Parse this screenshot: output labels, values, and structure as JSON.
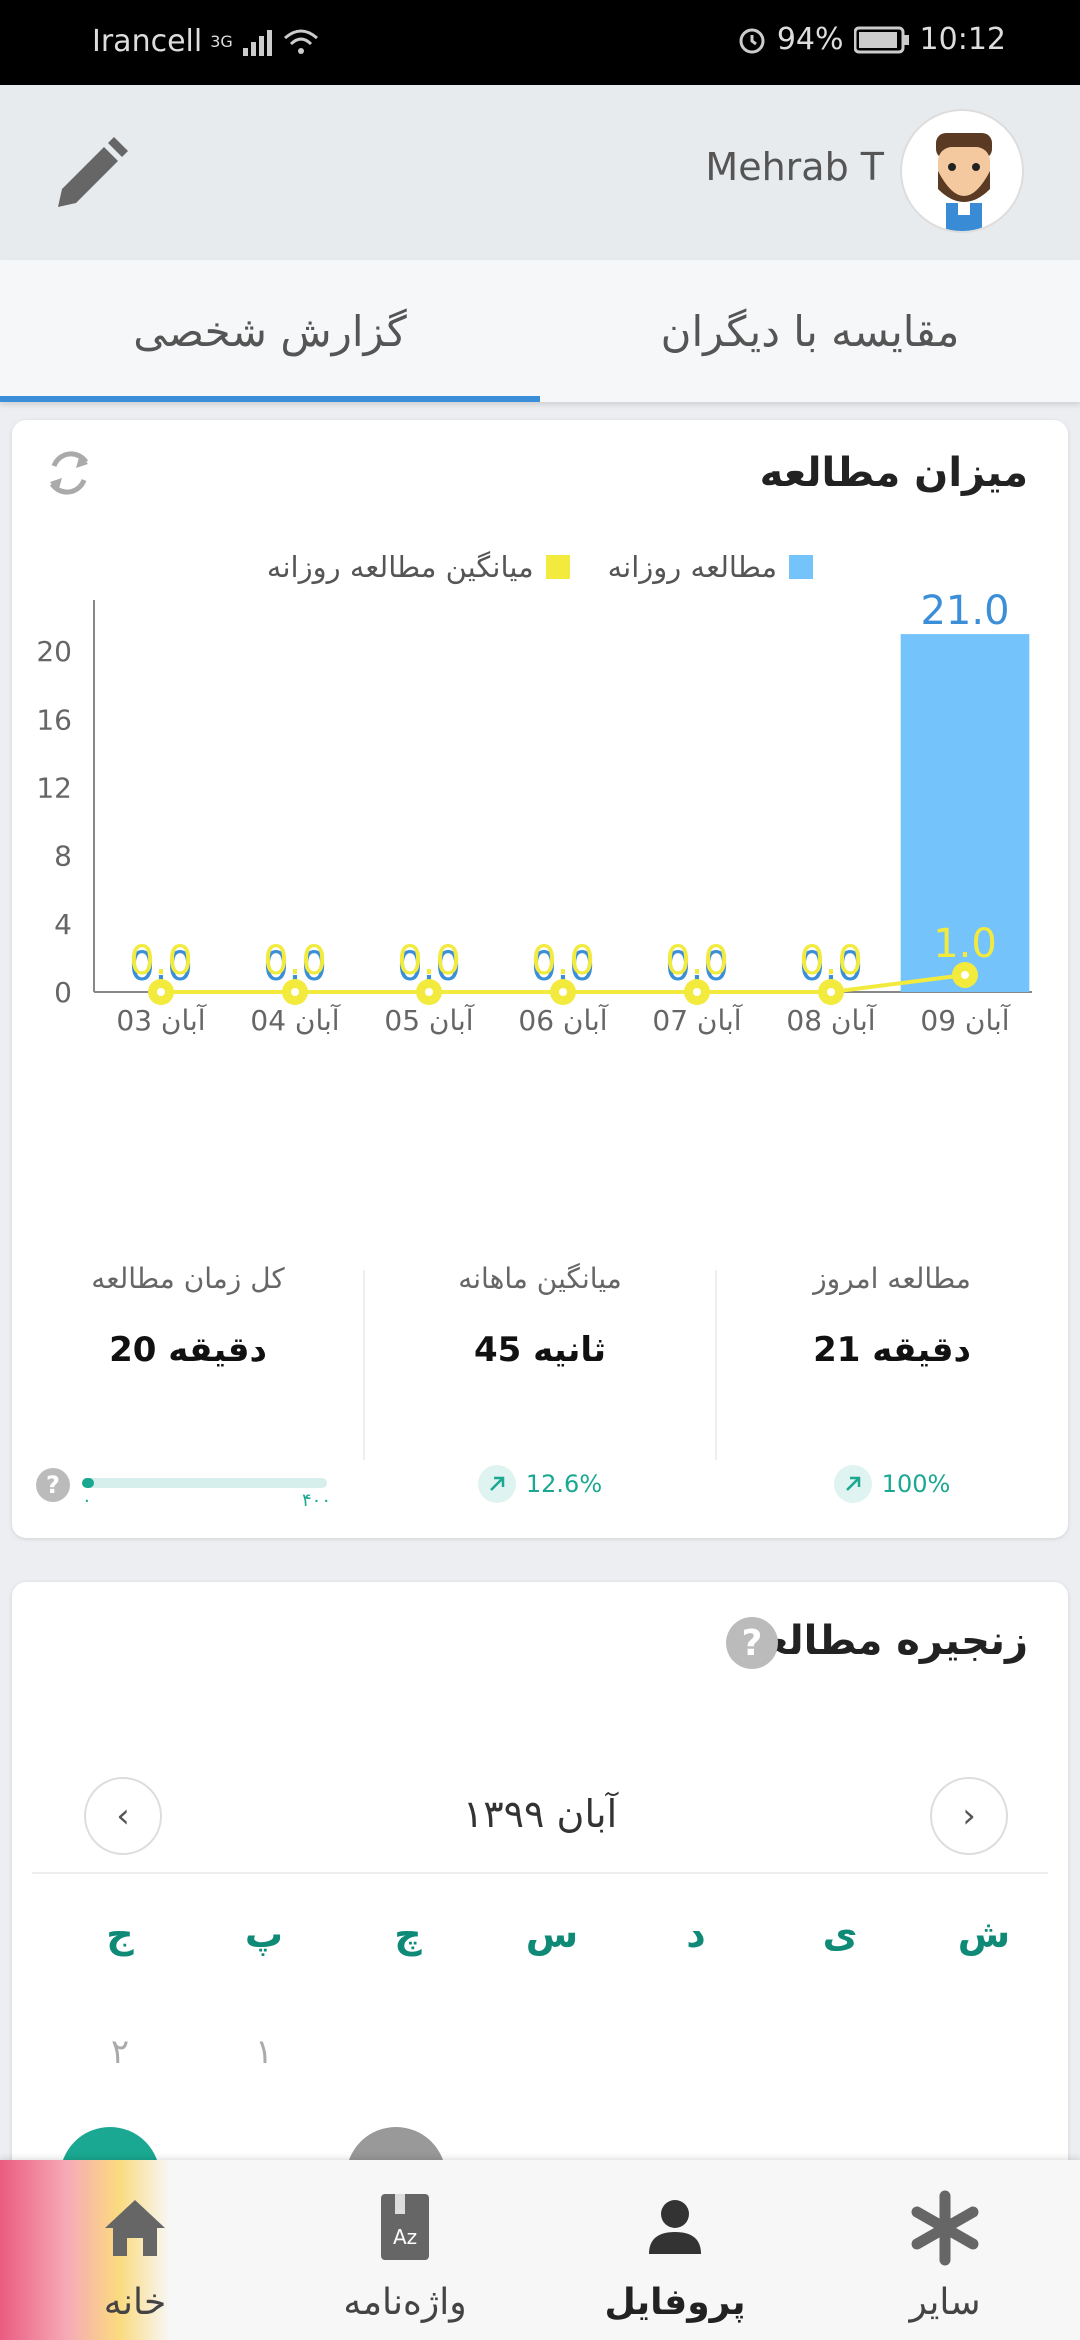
{
  "status_bar": {
    "carrier": "Irancell",
    "network": "3G",
    "battery": "94%",
    "time": "10:12"
  },
  "header": {
    "username": "Mehrab T"
  },
  "tabs": [
    {
      "label": "گزارش شخصی",
      "active": true
    },
    {
      "label": "مقایسه با دیگران",
      "active": false
    }
  ],
  "study_card": {
    "title": "میزان مطالعه",
    "legend": [
      {
        "label": "مطالعه روزانه",
        "color": "#74c3fb"
      },
      {
        "label": "میانگین مطالعه روزانه",
        "color": "#f2ea3d"
      }
    ],
    "stats": [
      {
        "label": "مطالعه امروز",
        "value": "21 دقیقه",
        "change": "100%"
      },
      {
        "label": "میانگین ماهانه",
        "value": "45 ثانیه",
        "change": "12.6%"
      },
      {
        "label": "کل زمان مطالعه",
        "value": "20 دقیقه",
        "progress": 0.05,
        "min": "۰",
        "max": "۴۰۰"
      }
    ]
  },
  "chart_data": {
    "type": "bar",
    "categories": [
      "03 آبان",
      "04 آبان",
      "05 آبان",
      "06 آبان",
      "07 آبان",
      "08 آبان",
      "09 آبان"
    ],
    "series": [
      {
        "name": "مطالعه روزانه",
        "type": "bar",
        "values": [
          0,
          0,
          0,
          0,
          0,
          0,
          21
        ],
        "labels": [
          "0.0",
          "0.0",
          "0.0",
          "0.0",
          "0.0",
          "0.0",
          "21.0"
        ]
      },
      {
        "name": "میانگین مطالعه روزانه",
        "type": "line",
        "values": [
          0,
          0,
          0,
          0,
          0,
          0,
          1
        ],
        "labels": [
          "0.0",
          "0.0",
          "0.0",
          "0.0",
          "0.0",
          "0.0",
          "1.0"
        ]
      }
    ],
    "y_ticks": [
      "0",
      "4",
      "8",
      "12",
      "16",
      "20"
    ],
    "ylim": [
      0,
      23
    ],
    "grid": false
  },
  "streak_card": {
    "title": "زنجیره مطالعه",
    "month": "آبان ۱۳۹۹",
    "weekdays": [
      "ش",
      "ی",
      "د",
      "س",
      "چ",
      "پ",
      "ج"
    ],
    "days": [
      "۱",
      "۲"
    ]
  },
  "bottom_nav": [
    {
      "label": "سایر",
      "icon": "asterisk-icon",
      "active": false
    },
    {
      "label": "پروفایل",
      "icon": "person-icon",
      "active": true
    },
    {
      "label": "واژه‌نامه",
      "icon": "dictionary-icon",
      "active": false
    },
    {
      "label": "خانه",
      "icon": "home-icon",
      "active": false
    }
  ]
}
